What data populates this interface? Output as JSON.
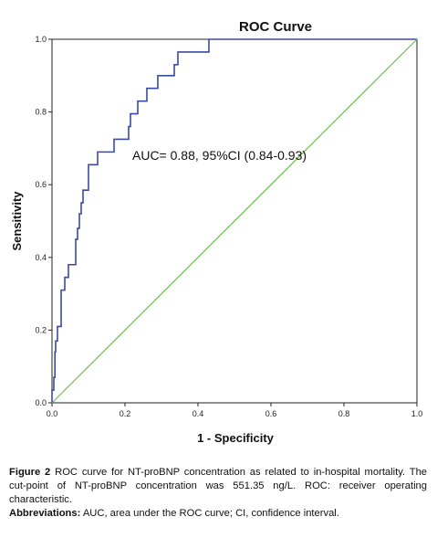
{
  "chart_data": {
    "type": "line",
    "title": "ROC Curve",
    "xlabel": "1 - Specificity",
    "ylabel": "Sensitivity",
    "xlim": [
      0,
      1
    ],
    "ylim": [
      0,
      1
    ],
    "x_ticks": [
      "0.0",
      "0.2",
      "0.4",
      "0.6",
      "0.8",
      "1.0"
    ],
    "y_ticks": [
      "0.0",
      "0.2",
      "0.4",
      "0.6",
      "0.8",
      "1.0"
    ],
    "annotation": "AUC= 0.88, 95%CI (0.84-0.93)",
    "grid": false,
    "colors": {
      "roc": "#3b4a9e",
      "reference": "#6cbf4a"
    },
    "series": [
      {
        "points": [
          [
            0.0,
            0.0
          ],
          [
            0.0,
            0.035
          ],
          [
            0.005,
            0.035
          ],
          [
            0.005,
            0.07
          ],
          [
            0.008,
            0.07
          ],
          [
            0.008,
            0.14
          ],
          [
            0.01,
            0.14
          ],
          [
            0.01,
            0.17
          ],
          [
            0.015,
            0.17
          ],
          [
            0.015,
            0.21
          ],
          [
            0.025,
            0.21
          ],
          [
            0.025,
            0.31
          ],
          [
            0.035,
            0.31
          ],
          [
            0.035,
            0.345
          ],
          [
            0.045,
            0.345
          ],
          [
            0.045,
            0.38
          ],
          [
            0.065,
            0.38
          ],
          [
            0.065,
            0.45
          ],
          [
            0.07,
            0.45
          ],
          [
            0.07,
            0.48
          ],
          [
            0.075,
            0.48
          ],
          [
            0.075,
            0.52
          ],
          [
            0.08,
            0.52
          ],
          [
            0.08,
            0.55
          ],
          [
            0.085,
            0.55
          ],
          [
            0.085,
            0.585
          ],
          [
            0.1,
            0.585
          ],
          [
            0.1,
            0.655
          ],
          [
            0.125,
            0.655
          ],
          [
            0.125,
            0.69
          ],
          [
            0.17,
            0.69
          ],
          [
            0.17,
            0.725
          ],
          [
            0.21,
            0.725
          ],
          [
            0.21,
            0.76
          ],
          [
            0.215,
            0.76
          ],
          [
            0.215,
            0.795
          ],
          [
            0.235,
            0.795
          ],
          [
            0.235,
            0.83
          ],
          [
            0.26,
            0.83
          ],
          [
            0.26,
            0.865
          ],
          [
            0.29,
            0.865
          ],
          [
            0.29,
            0.9
          ],
          [
            0.335,
            0.9
          ],
          [
            0.335,
            0.93
          ],
          [
            0.345,
            0.93
          ],
          [
            0.345,
            0.965
          ],
          [
            0.43,
            0.965
          ],
          [
            0.43,
            1.0
          ],
          [
            1.0,
            1.0
          ]
        ]
      },
      {
        "points": [
          [
            0,
            0
          ],
          [
            1,
            1
          ]
        ]
      }
    ]
  },
  "caption": {
    "fig_label": "Figure 2",
    "fig_text": "ROC curve for NT-proBNP concentration as related to in-hospital mortality. The cut-point of NT-proBNP concentration was 551.35 ng/L. ROC: receiver operating characteristic.",
    "abbr_label": "Abbreviations:",
    "abbr_text": "AUC, area under the ROC curve; CI, confidence interval."
  }
}
